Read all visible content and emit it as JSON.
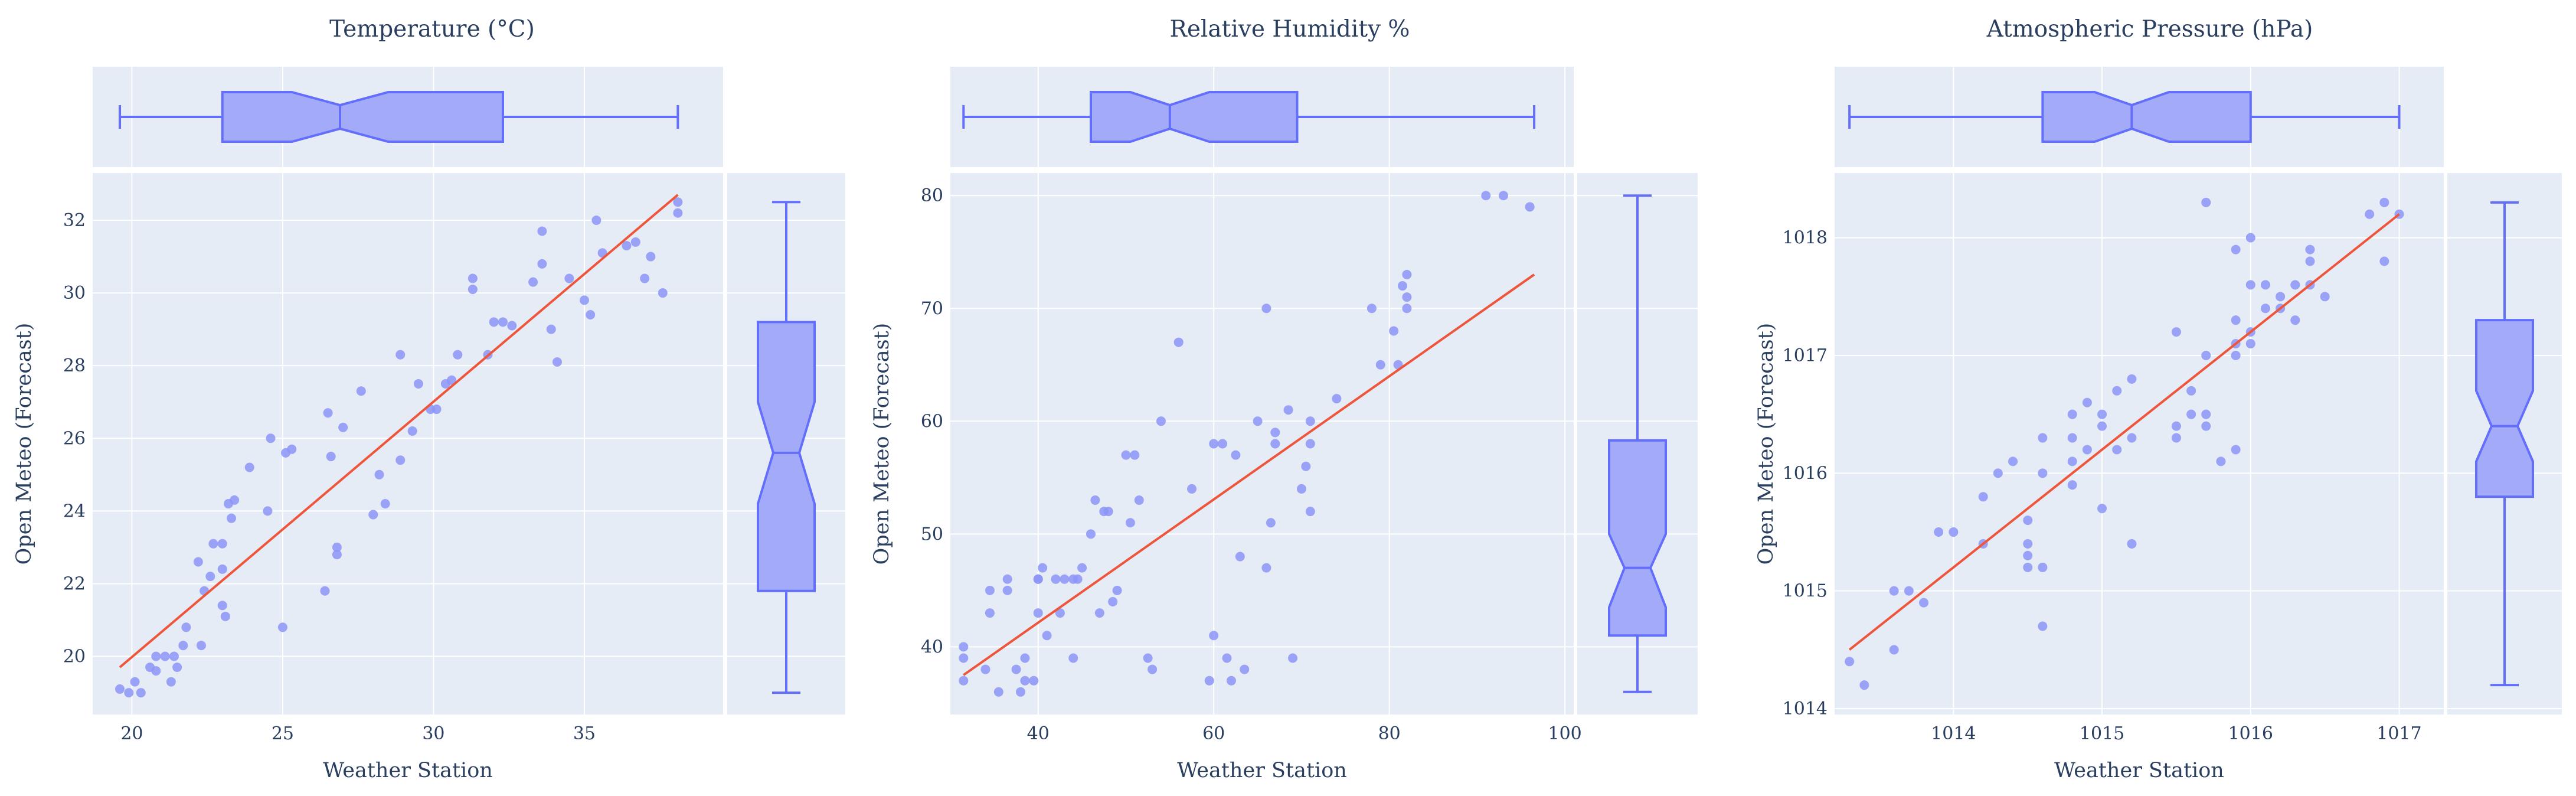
{
  "colors": {
    "plot_bg": "#e5ecf6",
    "grid": "#ffffff",
    "marker": "#8c95f7",
    "box_fill": "#a3abf9",
    "box_line": "#636efa",
    "trend": "#ef553b"
  },
  "chart_data": [
    {
      "type": "scatter",
      "title": "Temperature  (°C)",
      "xlabel": "Weather Station",
      "ylabel": "Open Meteo (Forecast)",
      "xlim": [
        18.7,
        39.6
      ],
      "ylim": [
        18.4,
        33.3
      ],
      "xticks": [
        20,
        25,
        30,
        35
      ],
      "yticks": [
        20,
        22,
        24,
        26,
        28,
        30,
        32
      ],
      "trendline": [
        [
          19.6,
          19.7
        ],
        [
          38.1,
          32.7
        ]
      ],
      "marginal_box_x": {
        "min": 19.6,
        "q1": 23.0,
        "notch_low": 25.3,
        "median": 26.9,
        "notch_high": 28.5,
        "q3": 32.3,
        "max": 38.1
      },
      "marginal_box_y": {
        "min": 19.0,
        "q1": 21.8,
        "notch_low": 24.2,
        "median": 25.6,
        "notch_high": 27.0,
        "q3": 29.2,
        "max": 32.5
      },
      "points": [
        [
          19.6,
          19.1
        ],
        [
          19.9,
          19.0
        ],
        [
          20.1,
          19.3
        ],
        [
          20.3,
          19.0
        ],
        [
          20.6,
          19.7
        ],
        [
          20.8,
          19.6
        ],
        [
          20.8,
          20.0
        ],
        [
          21.1,
          20.0
        ],
        [
          21.3,
          19.3
        ],
        [
          21.4,
          20.0
        ],
        [
          21.5,
          19.7
        ],
        [
          21.7,
          20.3
        ],
        [
          21.8,
          20.8
        ],
        [
          22.3,
          20.3
        ],
        [
          22.2,
          22.6
        ],
        [
          22.6,
          22.2
        ],
        [
          22.7,
          23.1
        ],
        [
          23.0,
          23.1
        ],
        [
          23.2,
          24.2
        ],
        [
          23.4,
          24.3
        ],
        [
          23.3,
          23.8
        ],
        [
          23.0,
          22.4
        ],
        [
          23.0,
          21.4
        ],
        [
          23.1,
          21.1
        ],
        [
          22.4,
          21.8
        ],
        [
          23.9,
          25.2
        ],
        [
          24.5,
          24.0
        ],
        [
          24.6,
          26.0
        ],
        [
          25.1,
          25.6
        ],
        [
          25.3,
          25.7
        ],
        [
          25.0,
          20.8
        ],
        [
          26.4,
          21.8
        ],
        [
          26.5,
          26.7
        ],
        [
          26.6,
          25.5
        ],
        [
          26.8,
          22.8
        ],
        [
          26.8,
          23.0
        ],
        [
          27.0,
          26.3
        ],
        [
          27.6,
          27.3
        ],
        [
          28.0,
          23.9
        ],
        [
          28.2,
          25.0
        ],
        [
          28.4,
          24.2
        ],
        [
          28.9,
          25.4
        ],
        [
          28.9,
          28.3
        ],
        [
          29.3,
          26.2
        ],
        [
          29.5,
          27.5
        ],
        [
          29.9,
          26.8
        ],
        [
          30.1,
          26.8
        ],
        [
          30.4,
          27.5
        ],
        [
          30.6,
          27.6
        ],
        [
          30.8,
          28.3
        ],
        [
          31.3,
          30.1
        ],
        [
          31.3,
          30.4
        ],
        [
          31.8,
          28.3
        ],
        [
          32.0,
          29.2
        ],
        [
          32.3,
          29.2
        ],
        [
          32.6,
          29.1
        ],
        [
          33.3,
          30.3
        ],
        [
          33.6,
          31.7
        ],
        [
          33.6,
          30.8
        ],
        [
          33.9,
          29.0
        ],
        [
          34.1,
          28.1
        ],
        [
          34.5,
          30.4
        ],
        [
          35.0,
          29.8
        ],
        [
          35.2,
          29.4
        ],
        [
          35.4,
          32.0
        ],
        [
          35.6,
          31.1
        ],
        [
          36.4,
          31.3
        ],
        [
          36.7,
          31.4
        ],
        [
          37.0,
          30.4
        ],
        [
          37.2,
          31.0
        ],
        [
          37.6,
          30.0
        ],
        [
          38.1,
          32.2
        ],
        [
          38.1,
          32.5
        ]
      ]
    },
    {
      "type": "scatter",
      "title": "Relative Humidity %",
      "xlabel": "Weather Station",
      "ylabel": "Open Meteo (Forecast)",
      "xlim": [
        30,
        101
      ],
      "ylim": [
        34,
        82
      ],
      "xticks": [
        40,
        60,
        80,
        100
      ],
      "yticks": [
        40,
        50,
        60,
        70,
        80
      ],
      "trendline": [
        [
          31.5,
          37.5
        ],
        [
          96.5,
          73.0
        ]
      ],
      "marginal_box_x": {
        "min": 31.5,
        "q1": 46.0,
        "notch_low": 50.5,
        "median": 55.0,
        "notch_high": 59.5,
        "q3": 69.5,
        "max": 96.5
      },
      "marginal_box_y": {
        "min": 36.0,
        "q1": 41.0,
        "notch_low": 43.5,
        "median": 47.0,
        "notch_high": 50.0,
        "q3": 58.3,
        "max": 80.0
      },
      "points": [
        [
          31.5,
          37
        ],
        [
          31.5,
          39
        ],
        [
          31.5,
          40
        ],
        [
          34,
          38
        ],
        [
          34.5,
          43
        ],
        [
          34.5,
          45
        ],
        [
          35.5,
          36
        ],
        [
          36.5,
          46
        ],
        [
          36.5,
          45
        ],
        [
          37.5,
          38
        ],
        [
          38,
          36
        ],
        [
          38.5,
          39
        ],
        [
          38.5,
          37
        ],
        [
          39.5,
          37
        ],
        [
          40,
          43
        ],
        [
          40,
          46
        ],
        [
          40.5,
          47
        ],
        [
          40,
          46
        ],
        [
          41,
          41
        ],
        [
          42,
          46
        ],
        [
          42.5,
          43
        ],
        [
          43,
          46
        ],
        [
          44,
          46
        ],
        [
          44.5,
          46
        ],
        [
          44,
          39
        ],
        [
          45,
          47
        ],
        [
          46,
          50
        ],
        [
          46.5,
          53
        ],
        [
          47,
          43
        ],
        [
          47.5,
          52
        ],
        [
          48,
          52
        ],
        [
          48.5,
          44
        ],
        [
          49,
          45
        ],
        [
          50,
          57
        ],
        [
          50.5,
          51
        ],
        [
          51,
          57
        ],
        [
          51.5,
          53
        ],
        [
          52.5,
          39
        ],
        [
          53,
          38
        ],
        [
          54,
          60
        ],
        [
          56,
          67
        ],
        [
          57.5,
          54
        ],
        [
          59.5,
          37
        ],
        [
          60,
          58
        ],
        [
          60,
          41
        ],
        [
          61,
          58
        ],
        [
          61.5,
          39
        ],
        [
          62,
          37
        ],
        [
          62.5,
          57
        ],
        [
          63,
          48
        ],
        [
          63.5,
          38
        ],
        [
          65,
          60
        ],
        [
          66,
          70
        ],
        [
          66,
          47
        ],
        [
          66.5,
          51
        ],
        [
          67,
          58
        ],
        [
          67,
          59
        ],
        [
          68.5,
          61
        ],
        [
          69,
          39
        ],
        [
          70,
          54
        ],
        [
          70.5,
          56
        ],
        [
          71,
          58
        ],
        [
          71,
          60
        ],
        [
          71,
          52
        ],
        [
          74,
          62
        ],
        [
          78,
          70
        ],
        [
          79,
          65
        ],
        [
          80.5,
          68
        ],
        [
          81,
          65
        ],
        [
          81.5,
          72
        ],
        [
          82,
          73
        ],
        [
          82,
          71
        ],
        [
          82,
          70
        ],
        [
          91,
          80
        ],
        [
          93,
          80
        ],
        [
          96,
          79
        ]
      ]
    },
    {
      "type": "scatter",
      "title": "Atmospheric Pressure (hPa)",
      "xlabel": "Weather Station",
      "ylabel": "Open Meteo (Forecast)",
      "xlim": [
        1013.2,
        1017.3
      ],
      "ylim": [
        1013.95,
        1018.55
      ],
      "xticks": [
        1014,
        1015,
        1016,
        1017
      ],
      "yticks": [
        1014,
        1015,
        1016,
        1017,
        1018
      ],
      "trendline": [
        [
          1013.3,
          1014.5
        ],
        [
          1017.0,
          1018.2
        ]
      ],
      "marginal_box_x": {
        "min": 1013.3,
        "q1": 1014.6,
        "notch_low": 1014.95,
        "median": 1015.2,
        "notch_high": 1015.45,
        "q3": 1016.0,
        "max": 1017.0
      },
      "marginal_box_y": {
        "min": 1014.2,
        "q1": 1015.8,
        "notch_low": 1016.1,
        "median": 1016.4,
        "notch_high": 1016.7,
        "q3": 1017.3,
        "max": 1018.3
      },
      "points": [
        [
          1013.3,
          1014.4
        ],
        [
          1013.4,
          1014.2
        ],
        [
          1013.6,
          1015.0
        ],
        [
          1013.6,
          1014.5
        ],
        [
          1013.7,
          1015.0
        ],
        [
          1013.8,
          1014.9
        ],
        [
          1013.9,
          1015.5
        ],
        [
          1014.0,
          1015.5
        ],
        [
          1014.2,
          1015.4
        ],
        [
          1014.2,
          1015.8
        ],
        [
          1014.3,
          1016.0
        ],
        [
          1014.4,
          1016.1
        ],
        [
          1014.5,
          1015.6
        ],
        [
          1014.5,
          1015.2
        ],
        [
          1014.5,
          1015.3
        ],
        [
          1014.5,
          1015.4
        ],
        [
          1014.6,
          1016.0
        ],
        [
          1014.6,
          1015.2
        ],
        [
          1014.6,
          1016.3
        ],
        [
          1014.6,
          1014.7
        ],
        [
          1014.8,
          1016.3
        ],
        [
          1014.8,
          1016.1
        ],
        [
          1014.8,
          1016.5
        ],
        [
          1014.8,
          1015.9
        ],
        [
          1014.9,
          1016.6
        ],
        [
          1014.9,
          1016.2
        ],
        [
          1015.0,
          1016.5
        ],
        [
          1015.0,
          1016.4
        ],
        [
          1015.0,
          1015.7
        ],
        [
          1015.1,
          1016.2
        ],
        [
          1015.1,
          1016.7
        ],
        [
          1015.2,
          1016.8
        ],
        [
          1015.2,
          1016.3
        ],
        [
          1015.2,
          1015.4
        ],
        [
          1015.5,
          1016.4
        ],
        [
          1015.5,
          1016.3
        ],
        [
          1015.5,
          1017.2
        ],
        [
          1015.6,
          1016.7
        ],
        [
          1015.6,
          1016.5
        ],
        [
          1015.7,
          1018.3
        ],
        [
          1015.7,
          1016.5
        ],
        [
          1015.7,
          1017.0
        ],
        [
          1015.7,
          1016.4
        ],
        [
          1015.8,
          1016.1
        ],
        [
          1015.9,
          1016.2
        ],
        [
          1015.9,
          1017.0
        ],
        [
          1015.9,
          1017.9
        ],
        [
          1015.9,
          1017.3
        ],
        [
          1015.9,
          1017.1
        ],
        [
          1016.0,
          1017.2
        ],
        [
          1016.0,
          1017.6
        ],
        [
          1016.0,
          1017.1
        ],
        [
          1016.0,
          1018.0
        ],
        [
          1016.1,
          1017.4
        ],
        [
          1016.1,
          1017.6
        ],
        [
          1016.2,
          1017.5
        ],
        [
          1016.2,
          1017.4
        ],
        [
          1016.3,
          1017.6
        ],
        [
          1016.3,
          1017.3
        ],
        [
          1016.4,
          1017.9
        ],
        [
          1016.4,
          1017.8
        ],
        [
          1016.4,
          1017.6
        ],
        [
          1016.5,
          1017.5
        ],
        [
          1016.8,
          1018.2
        ],
        [
          1016.9,
          1018.3
        ],
        [
          1016.9,
          1017.8
        ],
        [
          1017.0,
          1018.2
        ]
      ]
    }
  ]
}
